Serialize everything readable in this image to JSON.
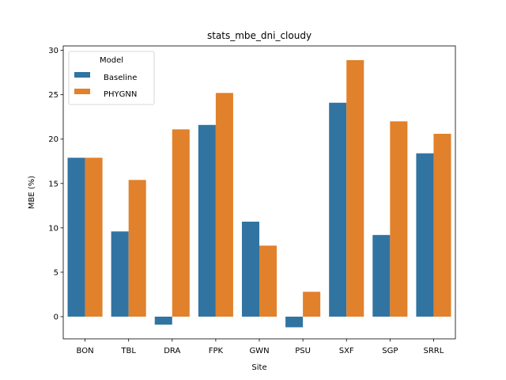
{
  "chart_data": {
    "type": "bar",
    "title": "stats_mbe_dni_cloudy",
    "xlabel": "Site",
    "ylabel": "MBE (%)",
    "categories": [
      "BON",
      "TBL",
      "DRA",
      "FPK",
      "GWN",
      "PSU",
      "SXF",
      "SGP",
      "SRRL"
    ],
    "series": [
      {
        "name": "Baseline",
        "color": "#3274a1",
        "values": [
          17.9,
          9.6,
          -0.9,
          21.6,
          10.7,
          -1.2,
          24.1,
          9.2,
          18.4
        ]
      },
      {
        "name": "PHYGNN",
        "color": "#e1812c",
        "values": [
          17.9,
          15.4,
          21.1,
          25.2,
          8.0,
          2.8,
          28.9,
          22.0,
          20.6
        ]
      }
    ],
    "ylim": [
      -2.5,
      30.5
    ],
    "yticks": [
      0,
      5,
      10,
      15,
      20,
      25,
      30
    ],
    "legend": {
      "title": "Model",
      "placement": "top-left"
    },
    "grid": false
  }
}
